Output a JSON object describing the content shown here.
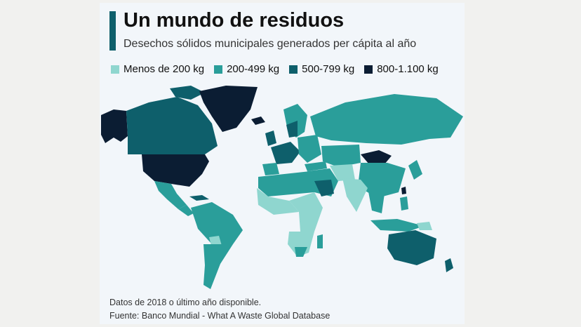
{
  "title": "Un mundo de residuos",
  "subtitle": "Desechos sólidos municipales generados per cápita al año",
  "legend": [
    {
      "label": "Menos de 200 kg",
      "color": "#8fd6cf"
    },
    {
      "label": "200-499 kg",
      "color": "#2a9e9a"
    },
    {
      "label": "500-799 kg",
      "color": "#0e5f6b"
    },
    {
      "label": "800-1.100 kg",
      "color": "#0b1d33"
    }
  ],
  "footer": {
    "note": "Datos de 2018 o último año disponible.",
    "source": "Fuente: Banco Mundial - What A Waste Global Database"
  }
}
